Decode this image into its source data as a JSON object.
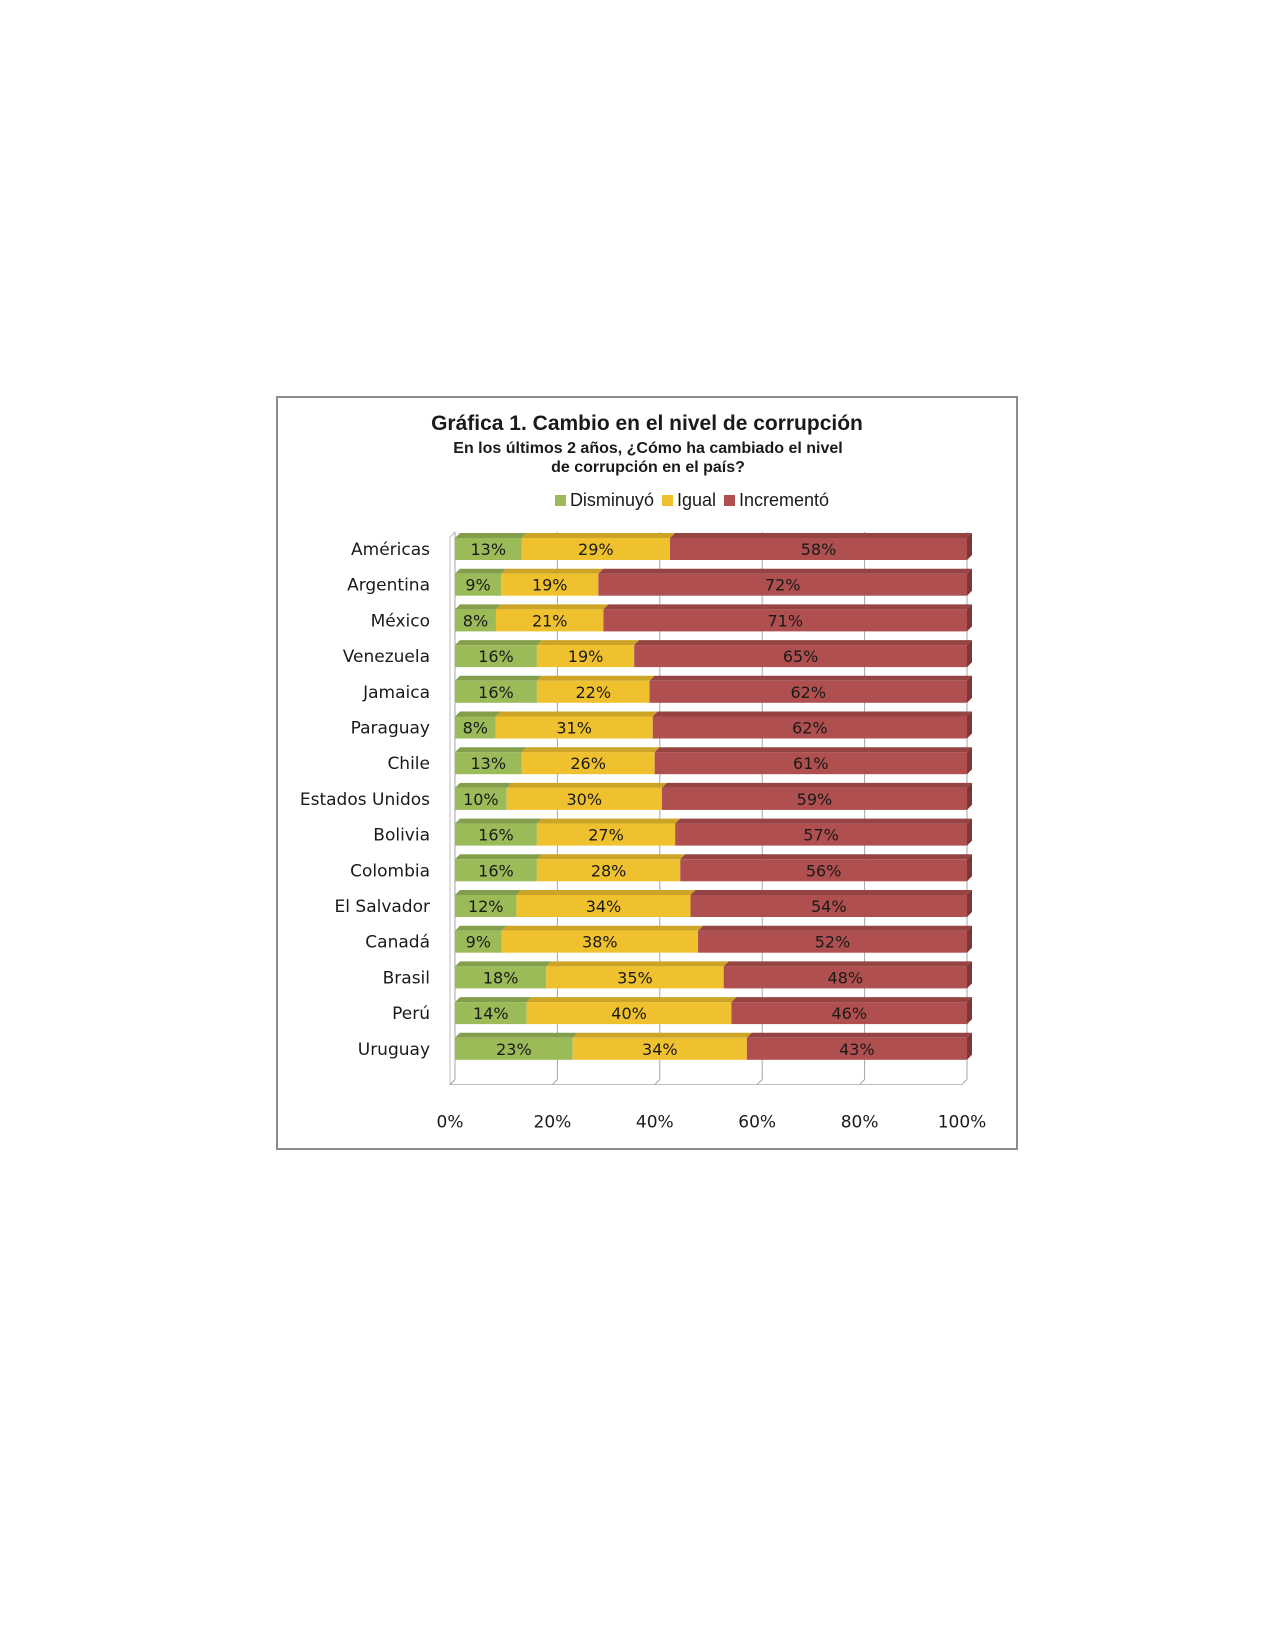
{
  "chart_data": {
    "type": "bar",
    "orientation": "horizontal",
    "stacked": true,
    "percent_stacked": true,
    "title": "Gráfica 1. Cambio en el nivel de corrupción",
    "subtitle": "En los últimos 2 años, ¿Cómo ha cambiado el nivel de corrupción en el país?",
    "xlabel": "",
    "ylabel": "",
    "xlim": [
      0,
      100
    ],
    "x_ticks": [
      "0%",
      "20%",
      "40%",
      "60%",
      "80%",
      "100%"
    ],
    "grid": true,
    "legend_position": "top",
    "categories": [
      "Américas",
      "Argentina",
      "México",
      "Venezuela",
      "Jamaica",
      "Paraguay",
      "Chile",
      "Estados Unidos",
      "Bolivia",
      "Colombia",
      "El Salvador",
      "Canadá",
      "Brasil",
      "Perú",
      "Uruguay"
    ],
    "series": [
      {
        "name": "Disminuyó",
        "color": "#9bbb59",
        "values": [
          13,
          9,
          8,
          16,
          16,
          8,
          13,
          10,
          16,
          16,
          12,
          9,
          18,
          14,
          23
        ]
      },
      {
        "name": "Igual",
        "color": "#f0c12e",
        "values": [
          29,
          19,
          21,
          19,
          22,
          31,
          26,
          30,
          27,
          28,
          34,
          38,
          35,
          40,
          34
        ]
      },
      {
        "name": "Incrementó",
        "color": "#b04f4f",
        "values": [
          58,
          72,
          71,
          65,
          62,
          62,
          61,
          59,
          57,
          56,
          54,
          52,
          48,
          46,
          43
        ]
      }
    ]
  }
}
